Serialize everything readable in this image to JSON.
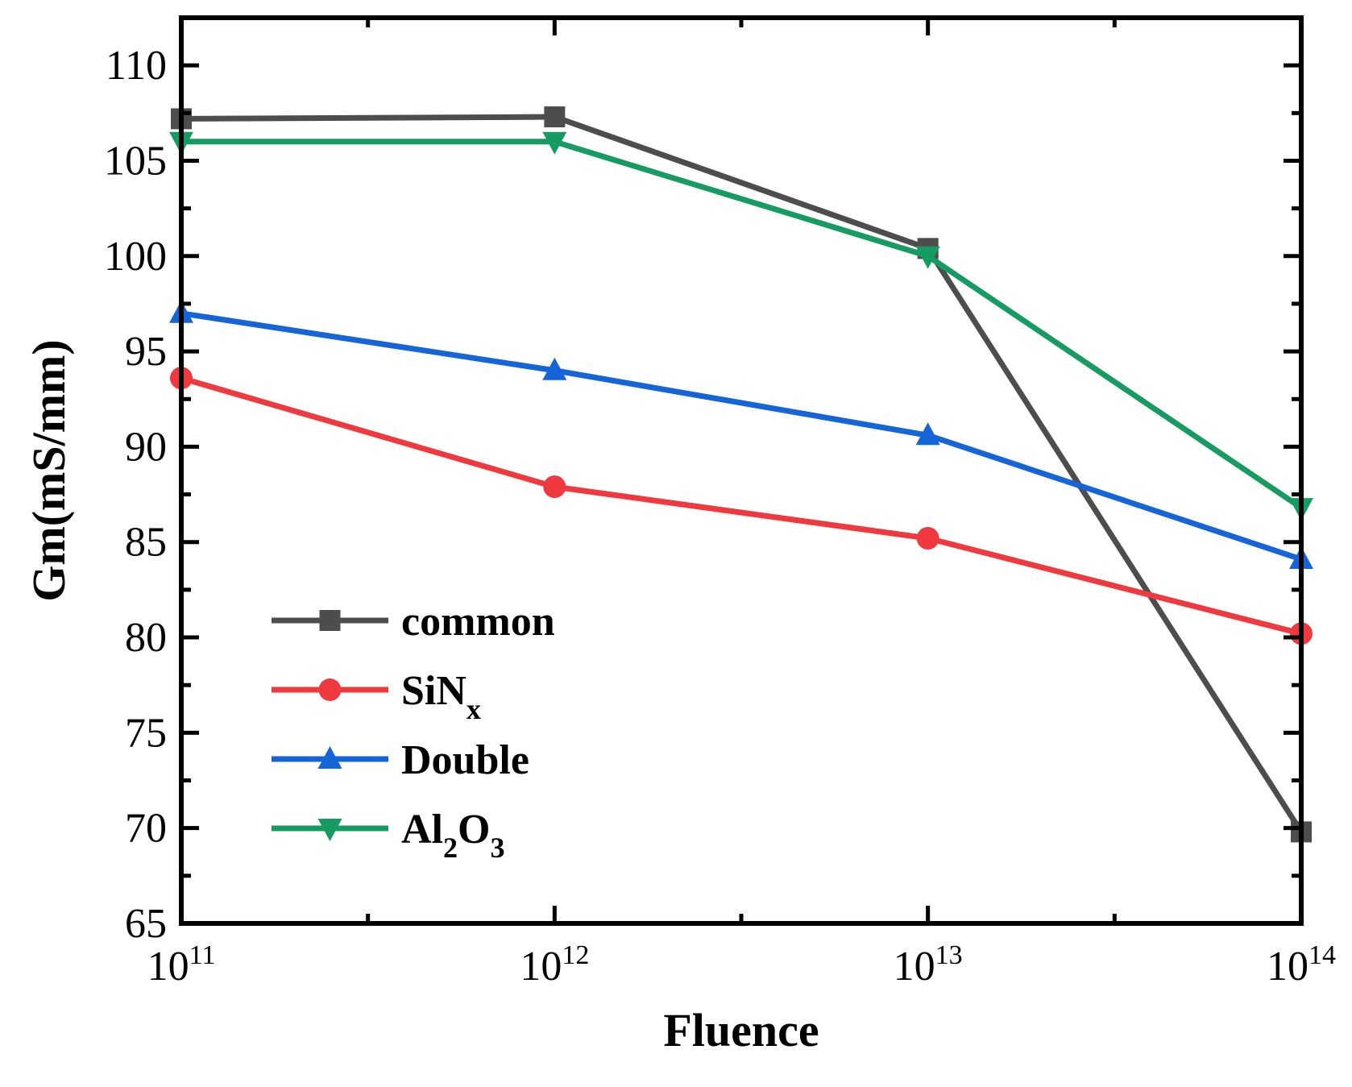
{
  "chart_data": {
    "type": "line",
    "title": "",
    "xlabel": "Fluence",
    "ylabel": "Gm(mS/mm)",
    "x_scale": "log",
    "x": [
      100000000000.0,
      1000000000000.0,
      10000000000000.0,
      100000000000000.0
    ],
    "xlim": [
      100000000000.0,
      100000000000000.0
    ],
    "ylim": [
      65,
      112.5
    ],
    "x_ticks": [
      {
        "base": "10",
        "exponent": "11",
        "value": 100000000000.0
      },
      {
        "base": "10",
        "exponent": "12",
        "value": 1000000000000.0
      },
      {
        "base": "10",
        "exponent": "13",
        "value": 10000000000000.0
      },
      {
        "base": "10",
        "exponent": "14",
        "value": 100000000000000.0
      }
    ],
    "y_ticks": [
      "65",
      "70",
      "75",
      "80",
      "85",
      "90",
      "95",
      "100",
      "105",
      "110"
    ],
    "grid": false,
    "legend_position": "bottom-left",
    "series": [
      {
        "name": "common",
        "label_main": "common",
        "label_parts": [
          {
            "t": "common",
            "sub": false
          }
        ],
        "color": "#4d4d4d",
        "marker": "square",
        "values": [
          107.2,
          107.3,
          100.4,
          69.8
        ]
      },
      {
        "name": "SiNx",
        "label_parts": [
          {
            "t": "SiN",
            "sub": false
          },
          {
            "t": "x",
            "sub": true
          }
        ],
        "color": "#f0393e",
        "marker": "circle",
        "values": [
          93.6,
          87.9,
          85.2,
          80.2
        ]
      },
      {
        "name": "Double",
        "label_parts": [
          {
            "t": "Double",
            "sub": false
          }
        ],
        "color": "#1565d8",
        "marker": "triangle-up",
        "values": [
          97.0,
          94.0,
          90.6,
          84.1
        ]
      },
      {
        "name": "Al2O3",
        "label_parts": [
          {
            "t": "Al",
            "sub": false
          },
          {
            "t": "2",
            "sub": true
          },
          {
            "t": "O",
            "sub": false
          },
          {
            "t": "3",
            "sub": true
          }
        ],
        "color": "#169c62",
        "marker": "triangle-down",
        "values": [
          106.0,
          106.0,
          100.0,
          86.8
        ]
      }
    ]
  }
}
